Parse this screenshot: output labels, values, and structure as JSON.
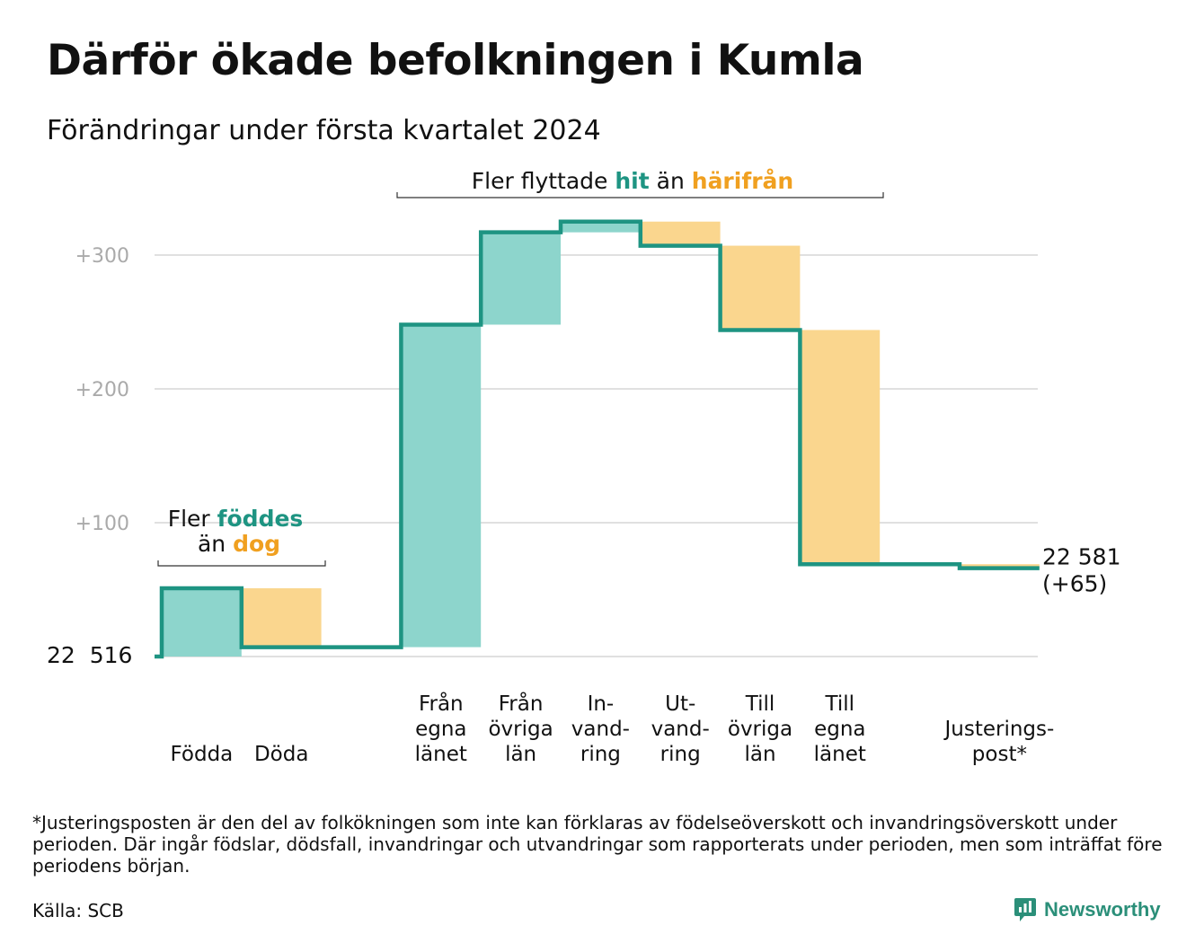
{
  "title": "Därför ökade befolkningen i Kumla",
  "subtitle": "Förändringar under första kvartalet 2024",
  "footnote": "*Justeringsposten är den del av folkökningen som inte kan förklaras av födelseöverskott och invandringsöverskott under perioden. Där ingår födslar, dödsfall, invandringar och utvandringar som rapporterats under perioden, men som inträffat före periodens början.",
  "source": "Källa: SCB",
  "brand": "Newsworthy",
  "colors": {
    "increase": "#8dd5cc",
    "decrease": "#fad68e",
    "line": "#1e9482",
    "teal_text": "#1e9482",
    "orange_text": "#f0a020",
    "grid": "#e0e0e0",
    "tick_text": "#aaaaaa"
  },
  "annotations": {
    "births": {
      "line1_pre": "Fler ",
      "line1_hl": "föddes",
      "line2_pre": "än ",
      "line2_hl": "dog"
    },
    "migration": {
      "pre": "Fler flyttade ",
      "hl1": "hit",
      "mid": " än ",
      "hl2": "härifrån"
    }
  },
  "chart_data": {
    "type": "waterfall",
    "title": "Därför ökade befolkningen i Kumla",
    "subtitle": "Förändringar under första kvartalet 2024",
    "start_value": 22516,
    "start_label": "22  516",
    "end_value": 22581,
    "end_label": "22 581",
    "end_change_label": "(+65)",
    "yaxis_unit": "change from start",
    "ylim": [
      0,
      330
    ],
    "yticks": [
      {
        "value": 100,
        "label": "+100"
      },
      {
        "value": 200,
        "label": "+200"
      },
      {
        "value": 300,
        "label": "+300"
      }
    ],
    "grid": true,
    "steps": [
      {
        "label_lines": [
          "Födda"
        ],
        "change": 51
      },
      {
        "label_lines": [
          "Döda"
        ],
        "change": -44
      },
      {
        "label_lines": [],
        "change": 0
      },
      {
        "label_lines": [
          "Från",
          "egna",
          "länet"
        ],
        "change": 241
      },
      {
        "label_lines": [
          "Från",
          "övriga",
          "län"
        ],
        "change": 69
      },
      {
        "label_lines": [
          "In-",
          "vand-",
          "ring"
        ],
        "change": 8
      },
      {
        "label_lines": [
          "Ut-",
          "vand-",
          "ring"
        ],
        "change": -18
      },
      {
        "label_lines": [
          "Till",
          "övriga",
          "län"
        ],
        "change": -63
      },
      {
        "label_lines": [
          "Till",
          "egna",
          "länet"
        ],
        "change": -175
      },
      {
        "label_lines": [],
        "change": 0
      },
      {
        "label_lines": [
          "Justerings-",
          "post*"
        ],
        "change": -3
      }
    ]
  }
}
